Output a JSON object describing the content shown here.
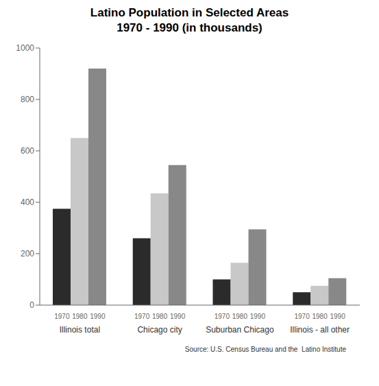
{
  "chart_data": {
    "type": "bar",
    "title": "Latino Population in Selected Areas",
    "subtitle": "1970 - 1990 (in thousands)",
    "categories": [
      "Illinois total",
      "Chicago city",
      "Suburban Chicago",
      "Illinois - all other"
    ],
    "series": [
      {
        "name": "1970",
        "color": "#2b2b2b",
        "values": [
          375,
          260,
          100,
          50
        ]
      },
      {
        "name": "1980",
        "color": "#c8c8c8",
        "values": [
          650,
          435,
          165,
          75
        ]
      },
      {
        "name": "1990",
        "color": "#888888",
        "values": [
          920,
          545,
          295,
          105
        ]
      }
    ],
    "ylim": [
      0,
      1000
    ],
    "yticks": [
      0,
      200,
      400,
      600,
      800,
      1000
    ],
    "grid": false,
    "annotations": [
      "Source: U.S. Census Bureau and the  Latino Institute"
    ]
  }
}
